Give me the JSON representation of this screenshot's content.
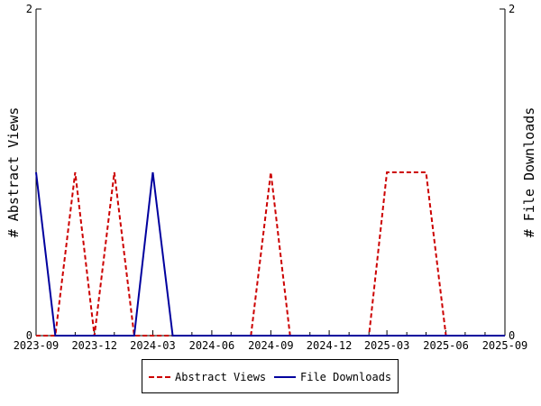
{
  "chart_data": {
    "type": "line",
    "x_type": "date",
    "xlim": [
      "2023-09-01",
      "2025-09-01"
    ],
    "x_ticks": [
      "2023-09",
      "2023-12",
      "2024-03",
      "2024-06",
      "2024-09",
      "2024-12",
      "2025-03",
      "2025-06",
      "2025-09"
    ],
    "ylabel_left": "# Abstract Views",
    "ylabel_right": "# File Downloads",
    "ylim_left": [
      0,
      2
    ],
    "ylim_right": [
      0,
      2
    ],
    "y_ticks_left": [
      "0",
      "2"
    ],
    "y_ticks_right": [
      "0",
      "2"
    ],
    "grid": false,
    "legend_position": "bottom",
    "series": [
      {
        "name": "Abstract Views",
        "color": "#cc0000",
        "style": "dashed",
        "axis": "left",
        "x": [
          "2023-09-01",
          "2023-10-01",
          "2023-11-01",
          "2023-12-01",
          "2024-01-01",
          "2024-02-01",
          "2024-03-01",
          "2024-04-01",
          "2024-05-01",
          "2024-06-01",
          "2024-07-01",
          "2024-08-01",
          "2024-09-01",
          "2024-10-01",
          "2024-11-01",
          "2024-12-01",
          "2025-01-01",
          "2025-02-01",
          "2025-03-01",
          "2025-04-01",
          "2025-05-01",
          "2025-06-01",
          "2025-07-01",
          "2025-08-01",
          "2025-09-01"
        ],
        "y": [
          0,
          0,
          1,
          0,
          1,
          0,
          0,
          0,
          0,
          0,
          0,
          0,
          1,
          0,
          0,
          0,
          0,
          0,
          1,
          1,
          1,
          0,
          0,
          0,
          0
        ]
      },
      {
        "name": "File Downloads",
        "color": "#00009e",
        "style": "solid",
        "axis": "right",
        "x": [
          "2023-09-01",
          "2023-10-01",
          "2023-11-01",
          "2023-12-01",
          "2024-01-01",
          "2024-02-01",
          "2024-03-01",
          "2024-04-01",
          "2024-05-01",
          "2024-06-01",
          "2024-07-01",
          "2024-08-01",
          "2024-09-01",
          "2024-10-01",
          "2024-11-01",
          "2024-12-01",
          "2025-01-01",
          "2025-02-01",
          "2025-03-01",
          "2025-04-01",
          "2025-05-01",
          "2025-06-01",
          "2025-07-01",
          "2025-08-01",
          "2025-09-01"
        ],
        "y": [
          1,
          0,
          0,
          0,
          0,
          0,
          1,
          0,
          0,
          0,
          0,
          0,
          0,
          0,
          0,
          0,
          0,
          0,
          0,
          0,
          0,
          0,
          0,
          0,
          0
        ]
      }
    ]
  }
}
